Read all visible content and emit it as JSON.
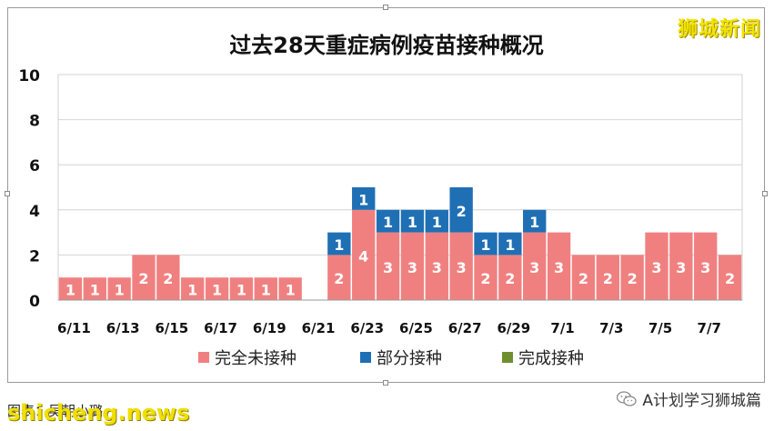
{
  "chart_data": {
    "type": "bar",
    "stacked": true,
    "title": "过去28天重症病例疫苗接种概况",
    "categories": [
      "6/11",
      "6/12",
      "6/13",
      "6/14",
      "6/15",
      "6/16",
      "6/17",
      "6/18",
      "6/19",
      "6/20",
      "6/21",
      "6/22",
      "6/23",
      "6/24",
      "6/25",
      "6/26",
      "6/27",
      "6/28",
      "6/29",
      "6/30",
      "7/1",
      "7/2",
      "7/3",
      "7/4",
      "7/5",
      "7/6",
      "7/7",
      "7/8"
    ],
    "tick_labels": [
      "6/11",
      "6/13",
      "6/15",
      "6/17",
      "6/19",
      "6/21",
      "6/23",
      "6/25",
      "6/27",
      "6/29",
      "7/1",
      "7/3",
      "7/5",
      "7/7"
    ],
    "series": [
      {
        "name": "完全未接种",
        "color": "#f08080",
        "values": [
          1,
          1,
          1,
          2,
          2,
          1,
          1,
          1,
          1,
          1,
          0,
          2,
          4,
          3,
          3,
          3,
          3,
          2,
          2,
          3,
          3,
          2,
          2,
          2,
          3,
          3,
          3,
          2
        ]
      },
      {
        "name": "部分接种",
        "color": "#1f6fb5",
        "values": [
          0,
          0,
          0,
          0,
          0,
          0,
          0,
          0,
          0,
          0,
          0,
          1,
          1,
          1,
          1,
          1,
          2,
          1,
          1,
          1,
          0,
          0,
          0,
          0,
          0,
          0,
          0,
          0
        ]
      },
      {
        "name": "完成接种",
        "color": "#6f8f2f",
        "values": [
          0,
          0,
          0,
          0,
          0,
          0,
          0,
          0,
          0,
          0,
          0,
          0,
          0,
          0,
          0,
          0,
          0,
          0,
          0,
          0,
          0,
          0,
          0,
          0,
          0,
          0,
          0,
          0
        ]
      }
    ],
    "ylim": [
      0,
      10
    ],
    "yticks": [
      0,
      2,
      4,
      6,
      8,
      10
    ],
    "grid": true,
    "legend_position": "bottom"
  },
  "watermarks": {
    "top_right": "狮城新闻",
    "bottom_left": "shicheng.news"
  },
  "credit": "图表：吴朝小璐",
  "account_name": "A计划学习狮城篇",
  "account_icon": "wechat-icon"
}
